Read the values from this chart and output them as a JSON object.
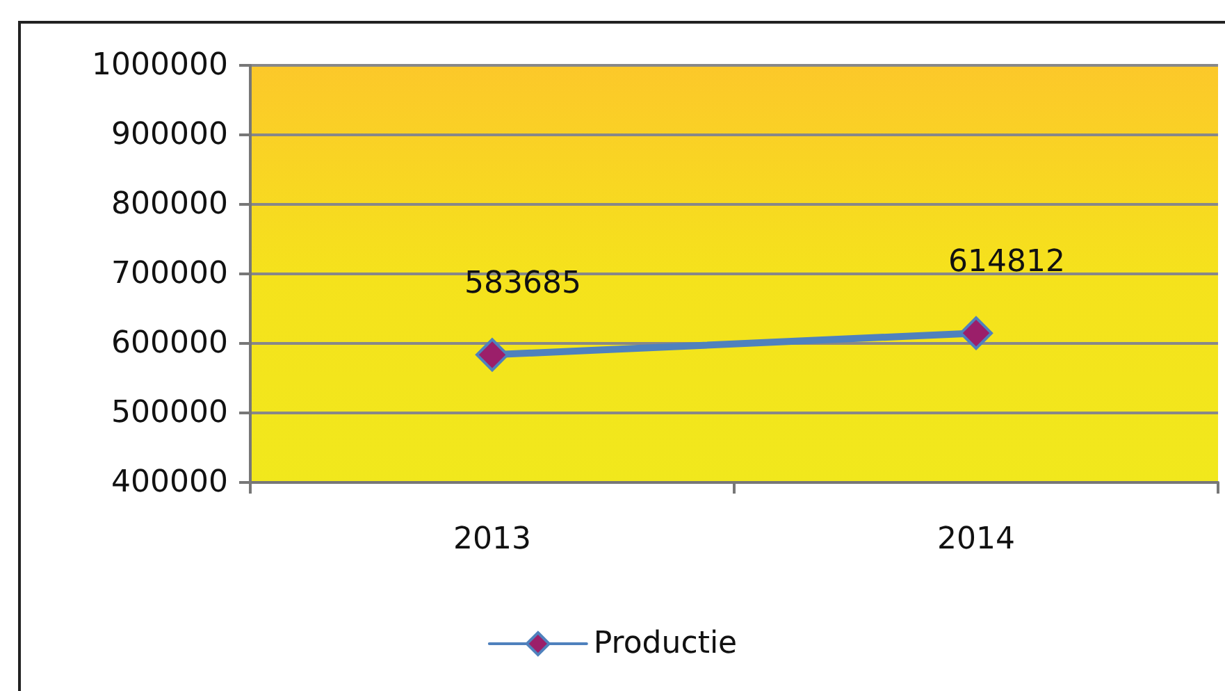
{
  "chart_data": {
    "type": "line",
    "categories": [
      "2013",
      "2014"
    ],
    "series": [
      {
        "name": "Productie",
        "color": "#4f81bd",
        "values": [
          583685,
          614812
        ]
      }
    ],
    "ylim": [
      400000,
      1000000
    ],
    "yticks": [
      400000,
      500000,
      600000,
      700000,
      800000,
      900000,
      1000000
    ],
    "grid": "y",
    "legend": "bottom",
    "marker": "diamond",
    "data_labels": true
  }
}
